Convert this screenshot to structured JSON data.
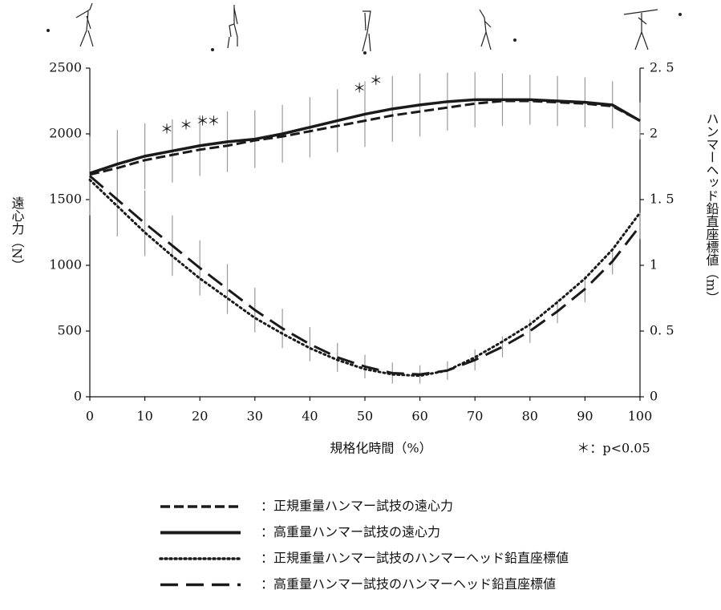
{
  "chart_data": {
    "type": "line",
    "x": [
      0,
      5,
      10,
      15,
      20,
      25,
      30,
      35,
      40,
      45,
      50,
      55,
      60,
      65,
      70,
      75,
      80,
      85,
      90,
      95,
      100
    ],
    "xlim": [
      0,
      100
    ],
    "xticks": [
      0,
      10,
      20,
      30,
      40,
      50,
      60,
      70,
      80,
      90,
      100
    ],
    "ylim": [
      0,
      2500
    ],
    "yticks": [
      0,
      500,
      1000,
      1500,
      2000,
      2500
    ],
    "y2lim": [
      0,
      2.5
    ],
    "y2ticks": [
      {
        "value": 0,
        "label": "0"
      },
      {
        "value": 0.5,
        "label": "0. 5"
      },
      {
        "value": 1,
        "label": "1"
      },
      {
        "value": 1.5,
        "label": "1. 5"
      },
      {
        "value": 2,
        "label": "2"
      },
      {
        "value": 2.5,
        "label": "2. 5"
      }
    ],
    "x_label": "規格化時間（%）",
    "y_label": "遠心力（N）",
    "y2_label": "ハンマーヘッド鉛直座標値（m）",
    "significance_mark": "＊",
    "significant_x": [
      14,
      17.5,
      20.5,
      22.5,
      49,
      52
    ],
    "significance_note": "＊：p<0.05",
    "error_color": "#9a9a9a",
    "series": [
      {
        "name": "：正規重量ハンマー試技の遠心力",
        "color": "#1a1a1a",
        "dash": "dashed",
        "values": [
          1690,
          1740,
          1800,
          1840,
          1880,
          1910,
          1950,
          1980,
          2020,
          2060,
          2100,
          2140,
          2170,
          2200,
          2230,
          2250,
          2250,
          2240,
          2230,
          2210,
          2100
        ]
      },
      {
        "name": "：高重量ハンマー試技の遠心力",
        "color": "#1a1a1a",
        "dash": "solid",
        "values": [
          1700,
          1770,
          1830,
          1870,
          1910,
          1940,
          1960,
          2000,
          2050,
          2100,
          2150,
          2190,
          2220,
          2245,
          2260,
          2260,
          2260,
          2250,
          2240,
          2220,
          2100
        ],
        "errors": [
          270,
          260,
          250,
          240,
          230,
          230,
          220,
          220,
          230,
          240,
          250,
          250,
          240,
          220,
          210,
          200,
          190,
          190,
          190,
          180,
          140
        ]
      },
      {
        "name": "：正規重量ハンマー試技のハンマーヘッド鉛直座標値",
        "color": "#1a1a1a",
        "dash": "dotted",
        "axis": "y2",
        "values": [
          1.65,
          1.45,
          1.25,
          1.07,
          0.9,
          0.75,
          0.6,
          0.48,
          0.37,
          0.28,
          0.21,
          0.17,
          0.16,
          0.2,
          0.3,
          0.42,
          0.55,
          0.72,
          0.9,
          1.12,
          1.4
        ]
      },
      {
        "name": "：高重量ハンマー試技のハンマーヘッド鉛直座標値",
        "color": "#1a1a1a",
        "dash": "long-dash",
        "axis": "y2",
        "values": [
          1.68,
          1.5,
          1.32,
          1.15,
          0.98,
          0.82,
          0.66,
          0.52,
          0.4,
          0.3,
          0.23,
          0.18,
          0.17,
          0.2,
          0.28,
          0.38,
          0.5,
          0.65,
          0.82,
          1.03,
          1.3
        ],
        "errors": [
          0.3,
          0.28,
          0.25,
          0.23,
          0.21,
          0.19,
          0.17,
          0.15,
          0.13,
          0.11,
          0.09,
          0.08,
          0.07,
          0.07,
          0.08,
          0.08,
          0.09,
          0.09,
          0.1,
          0.1,
          0.1
        ]
      }
    ]
  }
}
